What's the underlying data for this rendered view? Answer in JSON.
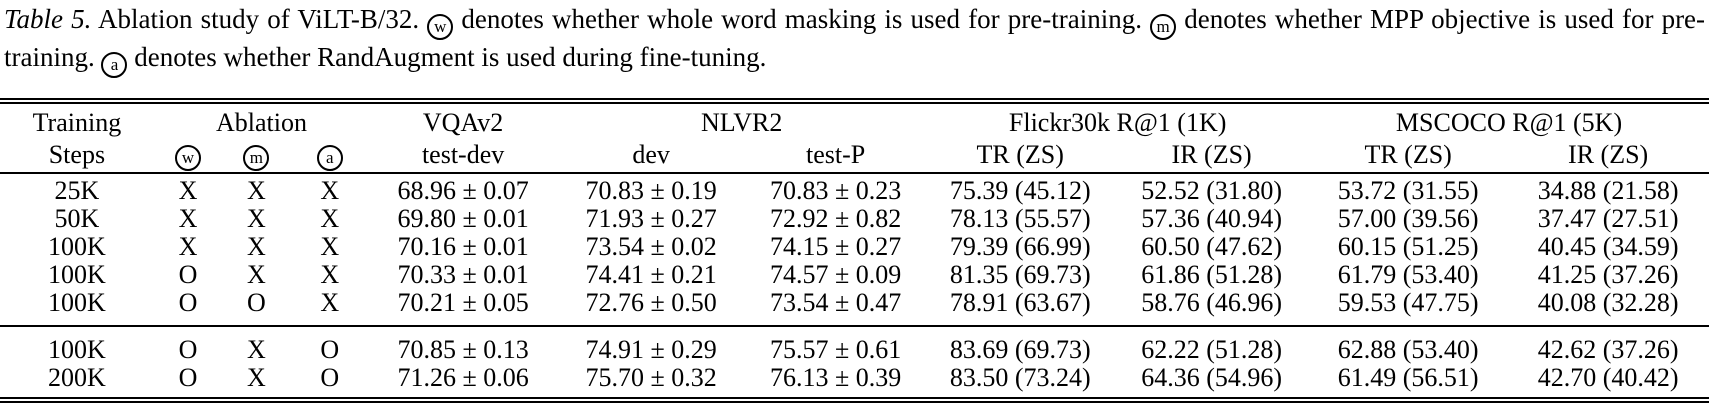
{
  "caption": {
    "label": "Table 5.",
    "seg1": "Ablation study of ViLT-B/32.",
    "circ_w": "w",
    "seg2": "denotes whether whole word masking is used for pre-training.",
    "circ_m": "m",
    "seg3": "denotes whether MPP objective is used for pre-training.",
    "circ_a": "a",
    "seg4": "denotes whether RandAugment is used during fine-tuning."
  },
  "table": {
    "header": {
      "training_line1": "Training",
      "training_line2": "Steps",
      "ablation": "Ablation",
      "ablation_marks": [
        "w",
        "m",
        "a"
      ],
      "vqav2_line1": "VQAv2",
      "vqav2_line2": "test-dev",
      "nlvr2": "NLVR2",
      "nlvr2_subs": [
        "dev",
        "test-P"
      ],
      "flickr30k": "Flickr30k R@1 (1K)",
      "flickr30k_subs": [
        "TR (ZS)",
        "IR (ZS)"
      ],
      "mscoco": "MSCOCO R@1 (5K)",
      "mscoco_subs": [
        "TR (ZS)",
        "IR (ZS)"
      ]
    },
    "groups": [
      {
        "rows": [
          {
            "steps": "25K",
            "w": "X",
            "m": "X",
            "a": "X",
            "vqav2_test_dev": "68.96 ± 0.07",
            "nlvr2_dev": "70.83 ± 0.19",
            "nlvr2_test_p": "70.83 ± 0.23",
            "flickr_tr": "75.39 (45.12)",
            "flickr_ir": "52.52 (31.80)",
            "coco_tr": "53.72 (31.55)",
            "coco_ir": "34.88 (21.58)"
          },
          {
            "steps": "50K",
            "w": "X",
            "m": "X",
            "a": "X",
            "vqav2_test_dev": "69.80 ± 0.01",
            "nlvr2_dev": "71.93 ± 0.27",
            "nlvr2_test_p": "72.92 ± 0.82",
            "flickr_tr": "78.13 (55.57)",
            "flickr_ir": "57.36 (40.94)",
            "coco_tr": "57.00 (39.56)",
            "coco_ir": "37.47 (27.51)"
          },
          {
            "steps": "100K",
            "w": "X",
            "m": "X",
            "a": "X",
            "vqav2_test_dev": "70.16 ± 0.01",
            "nlvr2_dev": "73.54 ± 0.02",
            "nlvr2_test_p": "74.15 ± 0.27",
            "flickr_tr": "79.39 (66.99)",
            "flickr_ir": "60.50 (47.62)",
            "coco_tr": "60.15 (51.25)",
            "coco_ir": "40.45 (34.59)"
          },
          {
            "steps": "100K",
            "w": "O",
            "m": "X",
            "a": "X",
            "vqav2_test_dev": "70.33 ± 0.01",
            "nlvr2_dev": "74.41 ± 0.21",
            "nlvr2_test_p": "74.57 ± 0.09",
            "flickr_tr": "81.35 (69.73)",
            "flickr_ir": "61.86 (51.28)",
            "coco_tr": "61.79 (53.40)",
            "coco_ir": "41.25 (37.26)"
          },
          {
            "steps": "100K",
            "w": "O",
            "m": "O",
            "a": "X",
            "vqav2_test_dev": "70.21 ± 0.05",
            "nlvr2_dev": "72.76 ± 0.50",
            "nlvr2_test_p": "73.54 ± 0.47",
            "flickr_tr": "78.91 (63.67)",
            "flickr_ir": "58.76 (46.96)",
            "coco_tr": "59.53 (47.75)",
            "coco_ir": "40.08 (32.28)"
          }
        ]
      },
      {
        "rows": [
          {
            "steps": "100K",
            "w": "O",
            "m": "X",
            "a": "O",
            "vqav2_test_dev": "70.85 ± 0.13",
            "nlvr2_dev": "74.91 ± 0.29",
            "nlvr2_test_p": "75.57 ± 0.61",
            "flickr_tr": "83.69 (69.73)",
            "flickr_ir": "62.22 (51.28)",
            "coco_tr": "62.88 (53.40)",
            "coco_ir": "42.62 (37.26)"
          },
          {
            "steps": "200K",
            "w": "O",
            "m": "X",
            "a": "O",
            "vqav2_test_dev": "71.26 ± 0.06",
            "nlvr2_dev": "75.70 ± 0.32",
            "nlvr2_test_p": "76.13 ± 0.39",
            "flickr_tr": "83.50 (73.24)",
            "flickr_ir": "64.36 (54.96)",
            "coco_tr": "61.49 (56.51)",
            "coco_ir": "42.70 (40.42)"
          }
        ]
      }
    ]
  }
}
